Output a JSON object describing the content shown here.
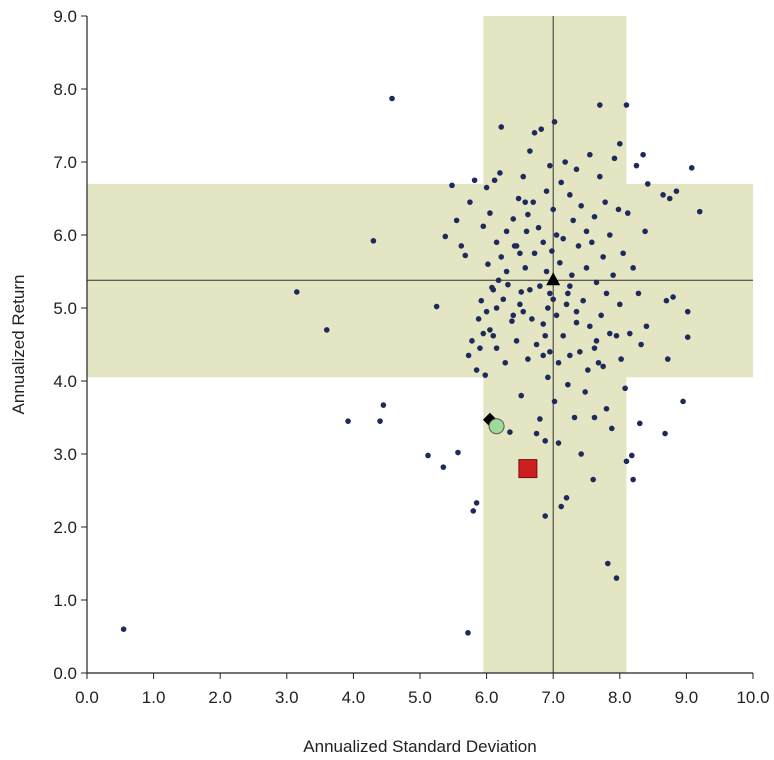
{
  "chart_data": {
    "type": "scatter",
    "xlabel": "Annualized Standard Deviation",
    "ylabel": "Annualized Return",
    "xlim": [
      0,
      10
    ],
    "ylim": [
      0,
      9
    ],
    "x_ticks": [
      "0.0",
      "1.0",
      "2.0",
      "3.0",
      "4.0",
      "5.0",
      "6.0",
      "7.0",
      "8.0",
      "9.0",
      "10.0"
    ],
    "y_ticks": [
      "0.0",
      "1.0",
      "2.0",
      "3.0",
      "4.0",
      "5.0",
      "6.0",
      "7.0",
      "8.0",
      "9.0"
    ],
    "grid": false,
    "colors": {
      "band": "#e4e6c3",
      "points": "#1f2a5c",
      "square": "#cc1f1f",
      "circle": "#9ed99e",
      "lines": "#333333"
    },
    "bands": {
      "vertical": [
        5.95,
        8.1
      ],
      "horizontal": [
        4.05,
        6.7
      ]
    },
    "reference_lines": {
      "x": 7.0,
      "y": 5.38
    },
    "highlighted": [
      {
        "marker": "triangle",
        "x": 7.0,
        "y": 5.38,
        "color": "#000000"
      },
      {
        "marker": "diamond",
        "x": 6.05,
        "y": 3.47,
        "color": "#000000"
      },
      {
        "marker": "circle",
        "x": 6.15,
        "y": 3.38,
        "color": "#9ed99e"
      },
      {
        "marker": "square",
        "x": 6.62,
        "y": 2.8,
        "color": "#cc1f1f"
      }
    ],
    "series": [
      {
        "values": [
          [
            0.55,
            0.6
          ],
          [
            3.15,
            5.22
          ],
          [
            3.6,
            4.7
          ],
          [
            3.92,
            3.45
          ],
          [
            4.3,
            5.92
          ],
          [
            4.4,
            3.45
          ],
          [
            4.45,
            3.67
          ],
          [
            4.58,
            7.87
          ],
          [
            5.12,
            2.98
          ],
          [
            5.25,
            5.02
          ],
          [
            5.35,
            2.82
          ],
          [
            5.38,
            5.98
          ],
          [
            5.48,
            6.68
          ],
          [
            5.55,
            6.2
          ],
          [
            5.57,
            3.02
          ],
          [
            5.62,
            5.85
          ],
          [
            5.68,
            5.72
          ],
          [
            5.72,
            0.55
          ],
          [
            5.73,
            4.35
          ],
          [
            5.75,
            6.45
          ],
          [
            5.78,
            4.55
          ],
          [
            5.8,
            2.22
          ],
          [
            5.82,
            6.75
          ],
          [
            5.85,
            2.33
          ],
          [
            5.85,
            4.15
          ],
          [
            5.88,
            4.85
          ],
          [
            5.9,
            4.45
          ],
          [
            5.92,
            5.1
          ],
          [
            5.95,
            6.12
          ],
          [
            5.95,
            4.65
          ],
          [
            5.98,
            4.08
          ],
          [
            6.0,
            6.65
          ],
          [
            6.0,
            4.95
          ],
          [
            6.02,
            5.6
          ],
          [
            6.05,
            4.7
          ],
          [
            6.05,
            6.3
          ],
          [
            6.08,
            5.28
          ],
          [
            6.1,
            4.62
          ],
          [
            6.12,
            6.75
          ],
          [
            6.15,
            5.9
          ],
          [
            6.15,
            4.45
          ],
          [
            6.18,
            5.38
          ],
          [
            6.2,
            6.85
          ],
          [
            6.22,
            5.7
          ],
          [
            6.22,
            7.48
          ],
          [
            6.25,
            5.12
          ],
          [
            6.28,
            4.25
          ],
          [
            6.3,
            5.5
          ],
          [
            6.3,
            6.05
          ],
          [
            6.32,
            5.32
          ],
          [
            6.35,
            3.3
          ],
          [
            6.38,
            4.82
          ],
          [
            6.4,
            6.22
          ],
          [
            6.42,
            5.85
          ],
          [
            6.45,
            4.55
          ],
          [
            6.48,
            6.5
          ],
          [
            6.5,
            5.05
          ],
          [
            6.52,
            3.8
          ],
          [
            6.55,
            4.95
          ],
          [
            6.55,
            6.8
          ],
          [
            6.58,
            5.55
          ],
          [
            6.6,
            6.05
          ],
          [
            6.62,
            4.3
          ],
          [
            6.65,
            5.25
          ],
          [
            6.65,
            7.15
          ],
          [
            6.68,
            4.85
          ],
          [
            6.7,
            6.45
          ],
          [
            6.72,
            7.4
          ],
          [
            6.72,
            5.75
          ],
          [
            6.75,
            4.5
          ],
          [
            6.75,
            3.28
          ],
          [
            6.78,
            6.1
          ],
          [
            6.8,
            5.3
          ],
          [
            6.8,
            3.48
          ],
          [
            6.82,
            7.45
          ],
          [
            6.85,
            5.9
          ],
          [
            6.85,
            4.78
          ],
          [
            6.88,
            3.18
          ],
          [
            6.88,
            2.15
          ],
          [
            6.9,
            6.6
          ],
          [
            6.9,
            5.5
          ],
          [
            6.92,
            4.05
          ],
          [
            6.95,
            6.95
          ],
          [
            6.95,
            4.4
          ],
          [
            6.98,
            5.78
          ],
          [
            7.0,
            5.12
          ],
          [
            7.0,
            6.35
          ],
          [
            7.02,
            3.72
          ],
          [
            7.02,
            7.55
          ],
          [
            7.05,
            4.9
          ],
          [
            7.05,
            6.0
          ],
          [
            7.08,
            4.25
          ],
          [
            7.08,
            3.15
          ],
          [
            7.1,
            5.62
          ],
          [
            7.12,
            6.72
          ],
          [
            7.12,
            2.28
          ],
          [
            7.15,
            4.62
          ],
          [
            7.15,
            5.95
          ],
          [
            7.18,
            7.0
          ],
          [
            7.2,
            5.05
          ],
          [
            7.2,
            2.4
          ],
          [
            7.22,
            3.95
          ],
          [
            7.25,
            6.55
          ],
          [
            7.25,
            4.35
          ],
          [
            7.28,
            5.45
          ],
          [
            7.3,
            6.2
          ],
          [
            7.32,
            3.5
          ],
          [
            7.35,
            4.8
          ],
          [
            7.35,
            6.9
          ],
          [
            7.38,
            5.85
          ],
          [
            7.4,
            4.4
          ],
          [
            7.42,
            3.0
          ],
          [
            7.42,
            6.4
          ],
          [
            7.45,
            5.1
          ],
          [
            7.48,
            3.85
          ],
          [
            7.5,
            6.05
          ],
          [
            7.5,
            5.55
          ],
          [
            7.52,
            4.15
          ],
          [
            7.55,
            7.1
          ],
          [
            7.55,
            4.75
          ],
          [
            7.58,
            5.9
          ],
          [
            7.6,
            2.65
          ],
          [
            7.62,
            6.25
          ],
          [
            7.62,
            3.5
          ],
          [
            7.65,
            5.35
          ],
          [
            7.68,
            4.25
          ],
          [
            7.7,
            6.8
          ],
          [
            7.7,
            7.78
          ],
          [
            7.72,
            4.9
          ],
          [
            7.75,
            5.7
          ],
          [
            7.75,
            4.2
          ],
          [
            7.78,
            6.45
          ],
          [
            7.8,
            3.62
          ],
          [
            7.8,
            5.2
          ],
          [
            7.82,
            1.5
          ],
          [
            7.85,
            6.0
          ],
          [
            7.85,
            4.65
          ],
          [
            7.88,
            3.35
          ],
          [
            7.9,
            5.45
          ],
          [
            7.92,
            7.05
          ],
          [
            7.95,
            4.62
          ],
          [
            7.95,
            1.3
          ],
          [
            7.98,
            6.35
          ],
          [
            8.0,
            5.05
          ],
          [
            8.0,
            7.25
          ],
          [
            8.02,
            4.3
          ],
          [
            8.05,
            5.75
          ],
          [
            8.08,
            3.9
          ],
          [
            8.1,
            7.78
          ],
          [
            8.1,
            2.9
          ],
          [
            8.12,
            6.3
          ],
          [
            8.15,
            4.65
          ],
          [
            8.18,
            2.98
          ],
          [
            8.2,
            5.55
          ],
          [
            8.2,
            2.65
          ],
          [
            8.25,
            6.95
          ],
          [
            8.28,
            5.2
          ],
          [
            8.3,
            3.42
          ],
          [
            8.32,
            4.5
          ],
          [
            8.35,
            7.1
          ],
          [
            8.38,
            6.05
          ],
          [
            8.4,
            4.75
          ],
          [
            8.42,
            6.7
          ],
          [
            8.65,
            6.55
          ],
          [
            8.68,
            3.28
          ],
          [
            8.7,
            5.1
          ],
          [
            8.72,
            4.3
          ],
          [
            8.75,
            6.5
          ],
          [
            8.8,
            5.15
          ],
          [
            8.85,
            6.6
          ],
          [
            8.95,
            3.72
          ],
          [
            9.02,
            4.95
          ],
          [
            9.02,
            4.6
          ],
          [
            9.08,
            6.92
          ],
          [
            9.2,
            6.32
          ],
          [
            6.58,
            6.45
          ],
          [
            6.62,
            6.28
          ],
          [
            6.45,
            5.85
          ],
          [
            6.4,
            4.9
          ],
          [
            6.5,
            5.75
          ],
          [
            6.52,
            5.22
          ],
          [
            7.22,
            5.2
          ],
          [
            7.25,
            5.3
          ],
          [
            7.35,
            4.95
          ],
          [
            6.92,
            5.0
          ],
          [
            6.95,
            5.2
          ],
          [
            7.62,
            4.45
          ],
          [
            7.65,
            4.55
          ],
          [
            6.85,
            4.35
          ],
          [
            6.88,
            4.62
          ],
          [
            6.1,
            5.25
          ],
          [
            6.15,
            5.0
          ]
        ]
      }
    ]
  }
}
